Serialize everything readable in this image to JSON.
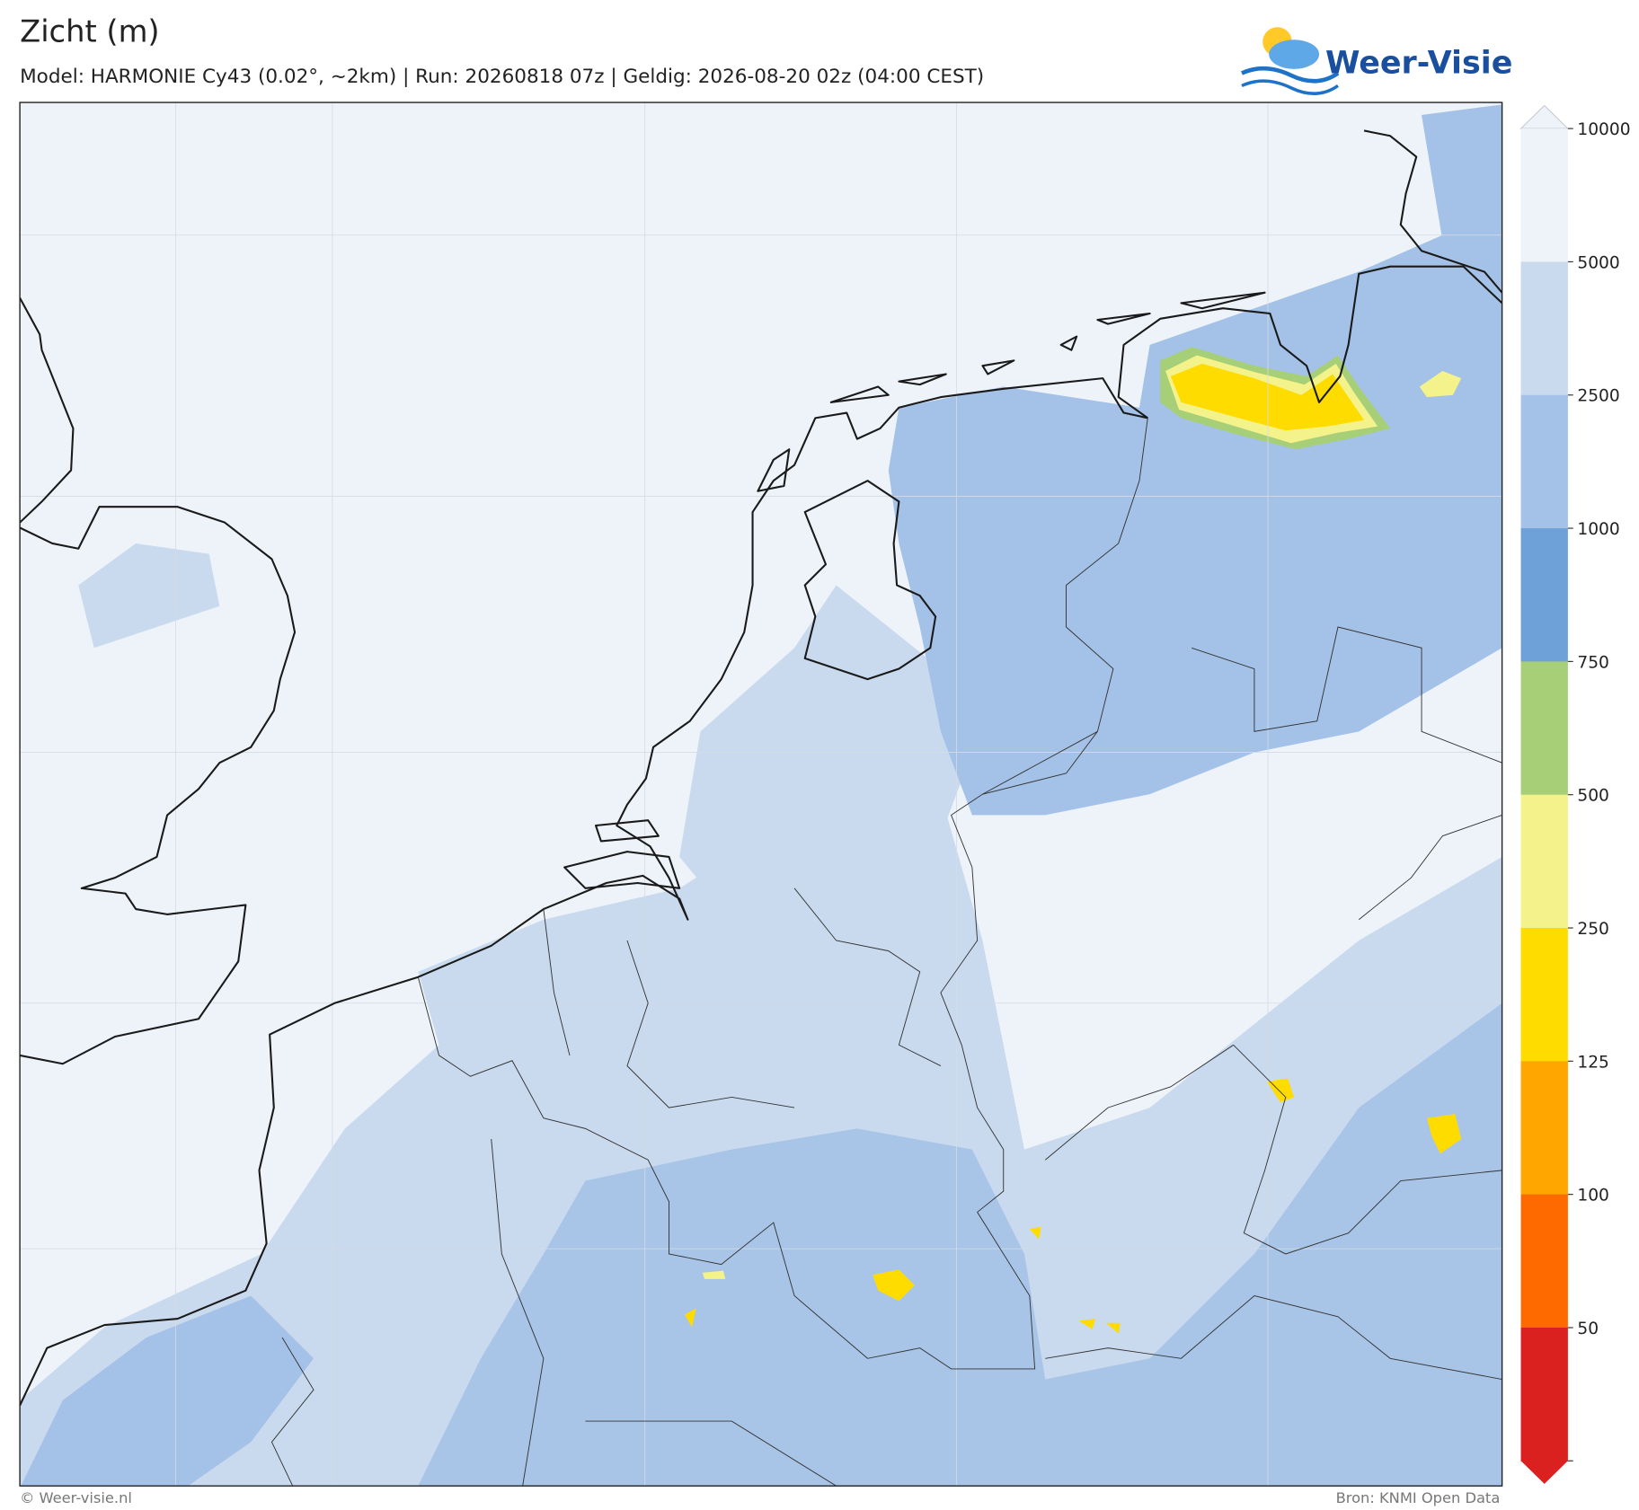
{
  "header": {
    "title": "Zicht (m)",
    "subtitle": "Model: HARMONIE Cy43 (0.02°, ~2km)  |  Run: 20260818 07z  |  Geldig: 2026-08-20 02z (04:00 CEST)",
    "logo": "Weer-Visie"
  },
  "colorbar": {
    "ticks": [
      10000,
      5000,
      2500,
      1000,
      750,
      500,
      250,
      125,
      100,
      50
    ],
    "colors": [
      "#eef3fa",
      "#c9daef",
      "#a4c2e7",
      "#6fa1d9",
      "#a7cf78",
      "#f4f28a",
      "#ffdc00",
      "#ffa600",
      "#ff6a00",
      "#db2020"
    ]
  },
  "footer": {
    "left": "© Weer-visie.nl",
    "right": "Bron: KNMI Open Data"
  }
}
